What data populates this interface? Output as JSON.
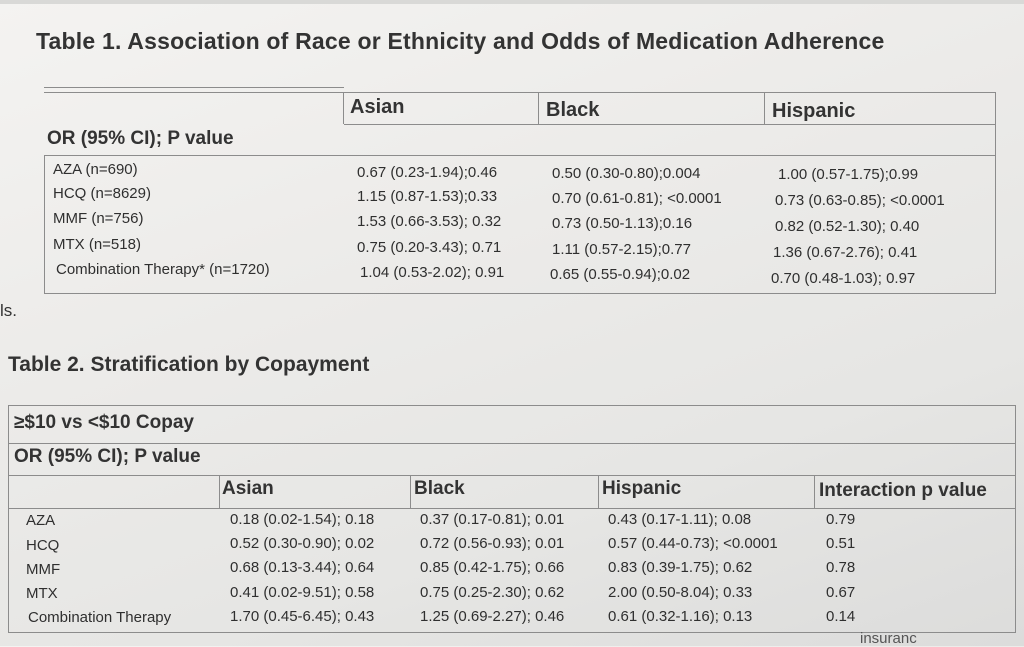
{
  "fragment": "ls.",
  "table1": {
    "title": "Table 1. Association of Race or Ethnicity and Odds of Medication Adherence",
    "columns": [
      "Asian",
      "Black",
      "Hispanic"
    ],
    "subheader": "OR (95% CI); P value",
    "rows": [
      {
        "label": "AZA (n=690)",
        "asian": "0.67 (0.23-1.94);0.46",
        "black": "0.50 (0.30-0.80);0.004",
        "hispanic": "1.00 (0.57-1.75);0.99"
      },
      {
        "label": "HCQ (n=8629)",
        "asian": "1.15 (0.87-1.53);0.33",
        "black": "0.70 (0.61-0.81); <0.0001",
        "hispanic": "0.73 (0.63-0.85); <0.0001"
      },
      {
        "label": "MMF (n=756)",
        "asian": "1.53 (0.66-3.53); 0.32",
        "black": "0.73 (0.50-1.13);0.16",
        "hispanic": "0.82 (0.52-1.30); 0.40"
      },
      {
        "label": "MTX (n=518)",
        "asian": "0.75 (0.20-3.43); 0.71",
        "black": "1.11 (0.57-2.15);0.77",
        "hispanic": "1.36 (0.67-2.76); 0.41"
      },
      {
        "label": "Combination Therapy* (n=1720)",
        "asian": "1.04 (0.53-2.02); 0.91",
        "black": "0.65 (0.55-0.94);0.02",
        "hispanic": "0.70 (0.48-1.03); 0.97"
      }
    ]
  },
  "table2": {
    "title": "Table 2. Stratification by Copayment",
    "subheader1": "≥$10 vs <$10 Copay",
    "subheader2": "OR (95% CI); P value",
    "columns": [
      "Asian",
      "Black",
      "Hispanic",
      "Interaction p value"
    ],
    "rows": [
      {
        "label": "AZA",
        "asian": "0.18 (0.02-1.54); 0.18",
        "black": "0.37 (0.17-0.81); 0.01",
        "hispanic": "0.43 (0.17-1.11); 0.08",
        "interaction": "0.79"
      },
      {
        "label": "HCQ",
        "asian": "0.52 (0.30-0.90); 0.02",
        "black": "0.72 (0.56-0.93); 0.01",
        "hispanic": "0.57 (0.44-0.73); <0.0001",
        "interaction": "0.51"
      },
      {
        "label": "MMF",
        "asian": "0.68 (0.13-3.44); 0.64",
        "black": "0.85 (0.42-1.75); 0.66",
        "hispanic": "0.83 (0.39-1.75); 0.62",
        "interaction": "0.78"
      },
      {
        "label": "MTX",
        "asian": "0.41 (0.02-9.51); 0.58",
        "black": "0.75 (0.25-2.30); 0.62",
        "hispanic": "2.00 (0.50-8.04); 0.33",
        "interaction": "0.67"
      },
      {
        "label": "Combination Therapy",
        "asian": "1.70 (0.45-6.45); 0.43",
        "black": "1.25 (0.69-2.27); 0.46",
        "hispanic": "0.61 (0.32-1.16); 0.13",
        "interaction": "0.14"
      }
    ]
  },
  "bottom_fragment": "insuranc"
}
